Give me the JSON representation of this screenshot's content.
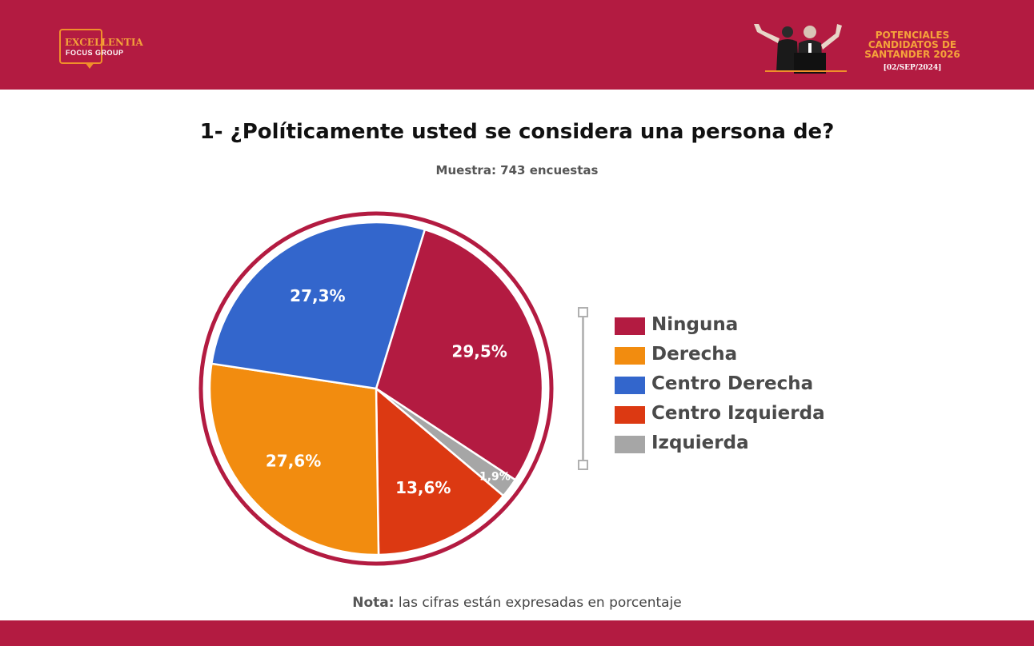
{
  "header": {
    "logo": {
      "line1": "EXCELLENTIA",
      "line2": "FOCUS GROUP"
    },
    "promo": {
      "lines": [
        "POTENCIALES",
        "CANDIDATOS DE",
        "SANTANDER 2026"
      ],
      "date": "[02/SEP/2024]"
    }
  },
  "colors": {
    "brand": "#b31b41",
    "accent": "#f0902a"
  },
  "chart_data": {
    "type": "pie",
    "title": "1- ¿Políticamente usted se considera una persona de?",
    "subtitle": "Muestra: 743 encuestas",
    "slices": [
      {
        "name": "Ninguna",
        "value": 29.5,
        "label": "29,5%",
        "color": "#b31b41"
      },
      {
        "name": "Izquierda",
        "value": 1.9,
        "label": "1,9%",
        "color": "#a6a6a6"
      },
      {
        "name": "Centro Izquierda",
        "value": 13.6,
        "label": "13,6%",
        "color": "#dc3912"
      },
      {
        "name": "Derecha",
        "value": 27.6,
        "label": "27,6%",
        "color": "#f28c0f"
      },
      {
        "name": "Centro Derecha",
        "value": 27.3,
        "label": "27,3%",
        "color": "#3366cc"
      }
    ],
    "legend": [
      {
        "name": "Ninguna",
        "color": "#b31b41"
      },
      {
        "name": "Derecha",
        "color": "#f28c0f"
      },
      {
        "name": "Centro Derecha",
        "color": "#3366cc"
      },
      {
        "name": "Centro Izquierda",
        "color": "#dc3912"
      },
      {
        "name": "Izquierda",
        "color": "#a6a6a6"
      }
    ],
    "legend_position": "right"
  },
  "note": {
    "bold": "Nota:",
    "text": " las cifras están expresadas en porcentaje"
  }
}
